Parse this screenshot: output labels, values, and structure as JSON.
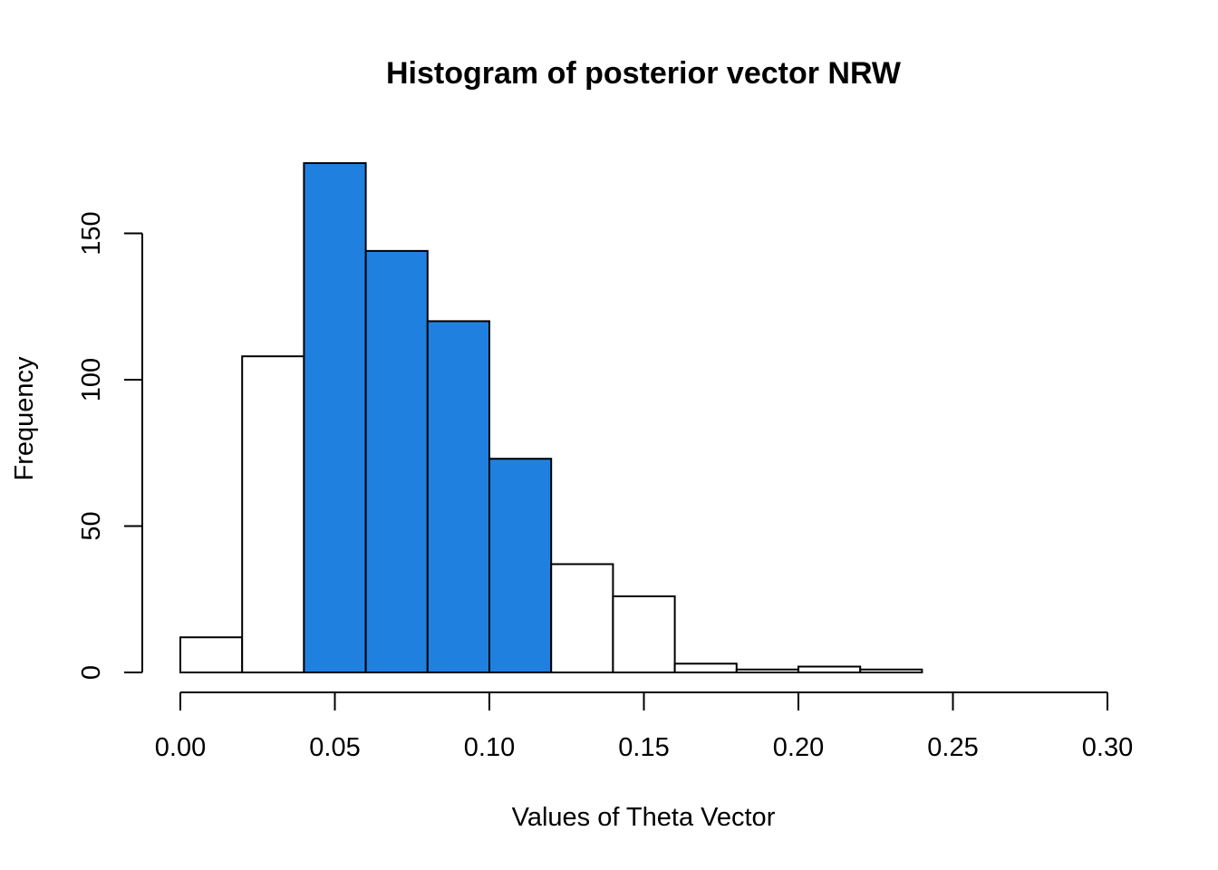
{
  "chart_data": {
    "type": "bar",
    "title": "Histogram of posterior vector NRW",
    "xlabel": "Values of Theta Vector",
    "ylabel": "Frequency",
    "xlim": [
      0,
      0.3
    ],
    "ylim": [
      0,
      175
    ],
    "x_ticks": [
      "0.00",
      "0.05",
      "0.10",
      "0.15",
      "0.20",
      "0.25",
      "0.30"
    ],
    "y_ticks": [
      "0",
      "50",
      "100",
      "150"
    ],
    "bin_edges": [
      0.0,
      0.02,
      0.04,
      0.06,
      0.08,
      0.1,
      0.12,
      0.14,
      0.16,
      0.18,
      0.2,
      0.22,
      0.24
    ],
    "values": [
      12,
      108,
      174,
      144,
      120,
      73,
      37,
      26,
      3,
      1,
      2,
      1
    ],
    "highlighted": [
      false,
      false,
      true,
      true,
      true,
      true,
      false,
      false,
      false,
      false,
      false,
      false
    ],
    "colors": {
      "highlight": "#2080E0",
      "default": "#FFFFFF",
      "stroke": "#000000"
    },
    "grid": false
  }
}
